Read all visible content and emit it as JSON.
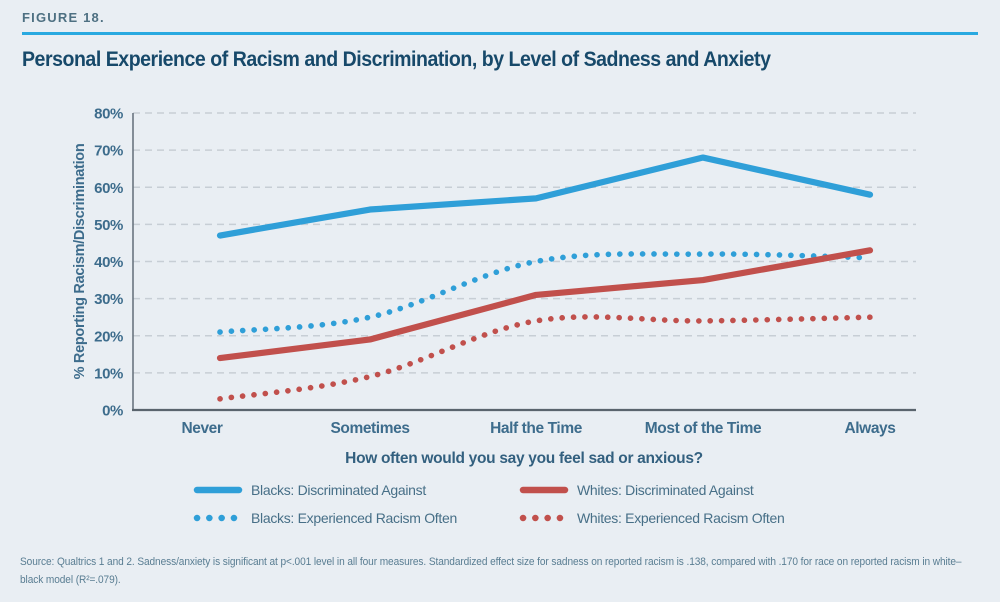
{
  "page": {
    "figure_label": "FIGURE 18.",
    "title": "Personal Experience of Racism and Discrimination, by Level of Sadness and Anxiety",
    "source_note": "Source: Qualtrics 1 and 2. Sadness/anxiety is significant at p<.001 level in all four measures. Standardized effect size for sadness on reported racism is .138, compared with .170 for race on reported racism in white–black model (R²=.079)."
  },
  "colors": {
    "background": "#e9eef3",
    "accent_rule": "#29a9e0",
    "title_text": "#17496a",
    "figure_label_text": "#4e7082",
    "axis_text": "#3d6c8c",
    "question_text": "#33607f",
    "legend_text": "#476f87",
    "source_text": "#597d92",
    "gridline": "#c7ced5",
    "axis_line": "#5a646d",
    "blue_series": "#2f9fd8",
    "red_series": "#c1504c"
  },
  "chart_data": {
    "type": "line",
    "title": "Personal Experience of Racism and Discrimination, by Level of Sadness and Anxiety",
    "xlabel": "How often would you say you feel sad or anxious?",
    "ylabel": "% Reporting Racism/Discrimination",
    "categories": [
      "Never",
      "Sometimes",
      "Half the Time",
      "Most of the Time",
      "Always"
    ],
    "ylim": [
      0,
      80
    ],
    "ytick_step": 10,
    "ytick_suffix": "%",
    "grid": "horizontal-dashed",
    "legend_position": "bottom",
    "series": [
      {
        "name": "Blacks: Discriminated Against",
        "color": "#2f9fd8",
        "style": "solid",
        "values": [
          47,
          54,
          57,
          68,
          58
        ]
      },
      {
        "name": "Blacks: Experienced Racism Often",
        "color": "#2f9fd8",
        "style": "dotted",
        "values": [
          21,
          25,
          40,
          42,
          41
        ]
      },
      {
        "name": "Whites: Discriminated Against",
        "color": "#c1504c",
        "style": "solid",
        "values": [
          14,
          19,
          31,
          35,
          43
        ]
      },
      {
        "name": "Whites: Experienced Racism Often",
        "color": "#c1504c",
        "style": "dotted",
        "values": [
          3,
          9,
          24,
          24,
          25
        ]
      }
    ]
  }
}
